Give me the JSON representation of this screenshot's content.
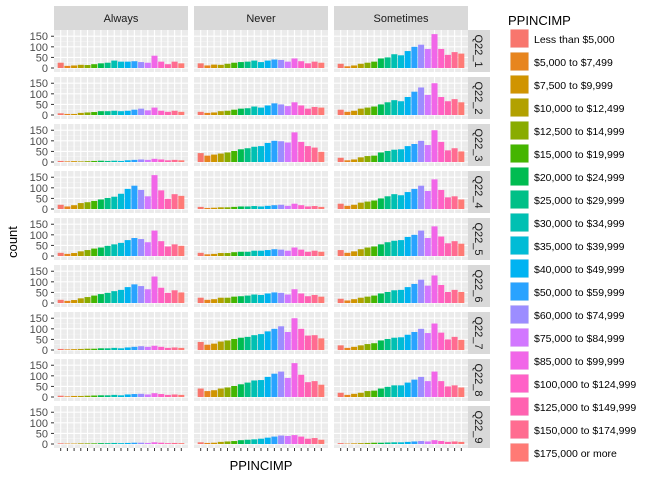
{
  "chart_data": {
    "type": "bar",
    "xlabel": "PPINCIMP",
    "ylabel": "count",
    "ylim": [
      0,
      170
    ],
    "y_ticks": [
      0,
      50,
      100,
      150
    ],
    "x_tick_labels_visible": false,
    "legend": {
      "title": "PPINCIMP",
      "position": "right",
      "items": [
        {
          "label": "Less than $5,000",
          "color": "#F8766D"
        },
        {
          "label": "$5,000 to $7,499",
          "color": "#E7851E"
        },
        {
          "label": "$7,500 to $9,999",
          "color": "#D09400"
        },
        {
          "label": "$10,000 to $12,499",
          "color": "#B2A100"
        },
        {
          "label": "$12,500 to $14,999",
          "color": "#89AC00"
        },
        {
          "label": "$15,000 to $19,999",
          "color": "#45B500"
        },
        {
          "label": "$20,000 to $24,999",
          "color": "#00BC51"
        },
        {
          "label": "$25,000 to $29,999",
          "color": "#00C087"
        },
        {
          "label": "$30,000 to $34,999",
          "color": "#00C0B2"
        },
        {
          "label": "$35,000 to $39,999",
          "color": "#00BCD6"
        },
        {
          "label": "$40,000 to $49,999",
          "color": "#00B3F2"
        },
        {
          "label": "$50,000 to $59,999",
          "color": "#29A3FF"
        },
        {
          "label": "$60,000 to $74,999",
          "color": "#9C8DFF"
        },
        {
          "label": "$75,000 to $84,999",
          "color": "#D277FF"
        },
        {
          "label": "$85,000 to $99,999",
          "color": "#F166E8"
        },
        {
          "label": "$100,000 to $124,999",
          "color": "#FF61C7"
        },
        {
          "label": "$125,000 to $149,999",
          "color": "#FF62B0"
        },
        {
          "label": "$150,000 to $174,999",
          "color": "#FF6C91"
        },
        {
          "label": "$175,000 or more",
          "color": "#FF7A75"
        }
      ]
    },
    "columns": [
      "Always",
      "Never",
      "Sometimes"
    ],
    "rows": [
      "Q22_1",
      "Q22_2",
      "Q22_3",
      "Q22_4",
      "Q22_5",
      "Q22_6",
      "Q22_7",
      "Q22_8",
      "Q22_9"
    ],
    "panels": {
      "Q22_1": {
        "Always": [
          25,
          10,
          12,
          15,
          14,
          18,
          22,
          25,
          35,
          30,
          30,
          32,
          28,
          25,
          58,
          30,
          18,
          30,
          22
        ],
        "Never": [
          22,
          12,
          16,
          15,
          20,
          25,
          28,
          30,
          35,
          28,
          35,
          40,
          38,
          30,
          45,
          32,
          22,
          30,
          25
        ],
        "Sometimes": [
          20,
          8,
          12,
          20,
          25,
          30,
          45,
          50,
          65,
          60,
          80,
          100,
          110,
          90,
          160,
          90,
          62,
          75,
          68
        ]
      },
      "Q22_2": {
        "Always": [
          8,
          5,
          5,
          10,
          12,
          14,
          18,
          18,
          20,
          18,
          20,
          25,
          30,
          22,
          35,
          20,
          15,
          20,
          15
        ],
        "Never": [
          15,
          10,
          12,
          18,
          20,
          25,
          30,
          32,
          40,
          35,
          45,
          55,
          50,
          42,
          60,
          45,
          30,
          38,
          35
        ],
        "Sometimes": [
          25,
          15,
          20,
          30,
          35,
          40,
          50,
          60,
          70,
          65,
          85,
          110,
          130,
          95,
          150,
          85,
          65,
          75,
          60
        ]
      },
      "Q22_3": {
        "Always": [
          5,
          3,
          4,
          3,
          4,
          5,
          6,
          5,
          6,
          5,
          8,
          10,
          12,
          10,
          15,
          12,
          8,
          10,
          8
        ],
        "Never": [
          42,
          30,
          35,
          40,
          45,
          52,
          60,
          65,
          72,
          75,
          90,
          100,
          98,
          92,
          140,
          95,
          75,
          68,
          48
        ],
        "Sometimes": [
          20,
          8,
          12,
          22,
          28,
          30,
          45,
          52,
          58,
          60,
          75,
          85,
          100,
          80,
          150,
          95,
          55,
          65,
          50
        ]
      },
      "Q22_4": {
        "Always": [
          20,
          12,
          18,
          28,
          32,
          38,
          45,
          52,
          58,
          72,
          95,
          110,
          90,
          60,
          160,
          88,
          48,
          70,
          62
        ],
        "Never": [
          10,
          5,
          6,
          8,
          8,
          10,
          12,
          12,
          14,
          12,
          15,
          18,
          20,
          15,
          25,
          18,
          12,
          14,
          10
        ],
        "Sometimes": [
          25,
          15,
          20,
          30,
          35,
          40,
          50,
          60,
          70,
          65,
          80,
          95,
          110,
          85,
          140,
          90,
          55,
          60,
          45
        ]
      },
      "Q22_5": {
        "Always": [
          15,
          10,
          14,
          22,
          28,
          35,
          40,
          48,
          55,
          62,
          75,
          85,
          80,
          65,
          120,
          70,
          45,
          55,
          48
        ],
        "Never": [
          15,
          8,
          10,
          14,
          14,
          18,
          20,
          20,
          25,
          25,
          28,
          32,
          30,
          25,
          40,
          30,
          20,
          25,
          20
        ],
        "Sometimes": [
          28,
          15,
          22,
          32,
          40,
          45,
          55,
          65,
          72,
          75,
          90,
          100,
          120,
          85,
          140,
          92,
          60,
          70,
          58
        ]
      },
      "Q22_6": {
        "Always": [
          15,
          10,
          14,
          22,
          28,
          35,
          42,
          48,
          56,
          62,
          75,
          88,
          80,
          65,
          125,
          72,
          48,
          60,
          50
        ],
        "Never": [
          25,
          15,
          18,
          25,
          25,
          30,
          32,
          35,
          40,
          38,
          45,
          50,
          48,
          40,
          65,
          45,
          32,
          38,
          30
        ],
        "Sometimes": [
          20,
          12,
          18,
          25,
          30,
          35,
          45,
          52,
          60,
          62,
          75,
          90,
          110,
          82,
          130,
          85,
          52,
          62,
          52
        ]
      },
      "Q22_7": {
        "Always": [
          5,
          3,
          4,
          5,
          6,
          6,
          8,
          8,
          10,
          8,
          12,
          15,
          18,
          15,
          20,
          15,
          10,
          12,
          10
        ],
        "Never": [
          38,
          25,
          30,
          40,
          45,
          52,
          58,
          62,
          70,
          75,
          88,
          100,
          112,
          85,
          150,
          100,
          68,
          70,
          55
        ],
        "Sometimes": [
          22,
          10,
          15,
          22,
          28,
          32,
          45,
          52,
          58,
          60,
          72,
          85,
          100,
          80,
          125,
          82,
          50,
          62,
          48
        ]
      },
      "Q22_8": {
        "Always": [
          6,
          3,
          5,
          5,
          6,
          7,
          8,
          8,
          10,
          8,
          12,
          14,
          15,
          12,
          18,
          14,
          10,
          12,
          10
        ],
        "Never": [
          40,
          28,
          32,
          40,
          45,
          52,
          60,
          68,
          78,
          80,
          95,
          110,
          120,
          90,
          160,
          105,
          70,
          75,
          58
        ],
        "Sometimes": [
          20,
          10,
          15,
          20,
          28,
          30,
          40,
          48,
          55,
          55,
          68,
          82,
          95,
          75,
          120,
          75,
          50,
          55,
          45
        ]
      },
      "Q22_9": {
        "Always": [
          3,
          2,
          2,
          3,
          3,
          3,
          4,
          4,
          5,
          4,
          5,
          6,
          6,
          5,
          8,
          6,
          4,
          5,
          4
        ],
        "Never": [
          8,
          5,
          6,
          10,
          12,
          14,
          18,
          20,
          22,
          25,
          30,
          35,
          40,
          38,
          42,
          35,
          25,
          28,
          20
        ],
        "Sometimes": [
          4,
          2,
          3,
          4,
          5,
          6,
          6,
          7,
          8,
          8,
          10,
          12,
          14,
          12,
          18,
          14,
          10,
          12,
          10
        ]
      }
    }
  }
}
